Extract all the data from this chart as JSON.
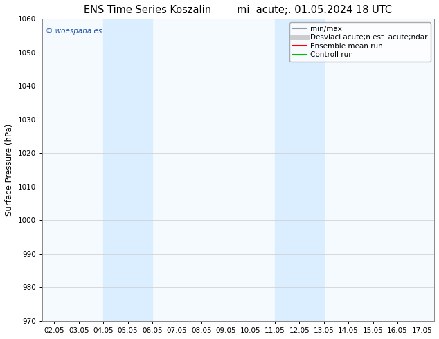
{
  "title_left": "ENS Time Series Koszalin",
  "title_right": "mi  acute;. 01.05.2024 18 UTC",
  "ylabel": "Surface Pressure (hPa)",
  "ylim": [
    970,
    1060
  ],
  "yticks": [
    970,
    980,
    990,
    1000,
    1010,
    1020,
    1030,
    1040,
    1050,
    1060
  ],
  "xtick_labels": [
    "02.05",
    "03.05",
    "04.05",
    "05.05",
    "06.05",
    "07.05",
    "08.05",
    "09.05",
    "10.05",
    "11.05",
    "12.05",
    "13.05",
    "14.05",
    "15.05",
    "16.05",
    "17.05"
  ],
  "xtick_positions": [
    0,
    1,
    2,
    3,
    4,
    5,
    6,
    7,
    8,
    9,
    10,
    11,
    12,
    13,
    14,
    15
  ],
  "xlim": [
    -0.5,
    15.5
  ],
  "shade_bands": [
    {
      "xmin": 2,
      "xmax": 4,
      "color": "#daeeff",
      "alpha": 1.0
    },
    {
      "xmin": 9,
      "xmax": 11,
      "color": "#daeeff",
      "alpha": 1.0
    }
  ],
  "watermark_text": "© woespana.es",
  "watermark_color": "#2255aa",
  "legend_entries": [
    {
      "label": "min/max",
      "color": "#999999",
      "lw": 1.5,
      "style": "-"
    },
    {
      "label": "Desviaci acute;n est  acute;ndar",
      "color": "#cccccc",
      "lw": 5,
      "style": "-"
    },
    {
      "label": "Ensemble mean run",
      "color": "#ff0000",
      "lw": 1.5,
      "style": "-"
    },
    {
      "label": "Controll run",
      "color": "#00bb00",
      "lw": 1.5,
      "style": "-"
    }
  ],
  "bg_color": "#ffffff",
  "plot_bg_color": "#f5faff",
  "grid_color": "#cccccc",
  "tick_fontsize": 7.5,
  "label_fontsize": 8.5,
  "title_fontsize": 10.5,
  "legend_fontsize": 7.5
}
